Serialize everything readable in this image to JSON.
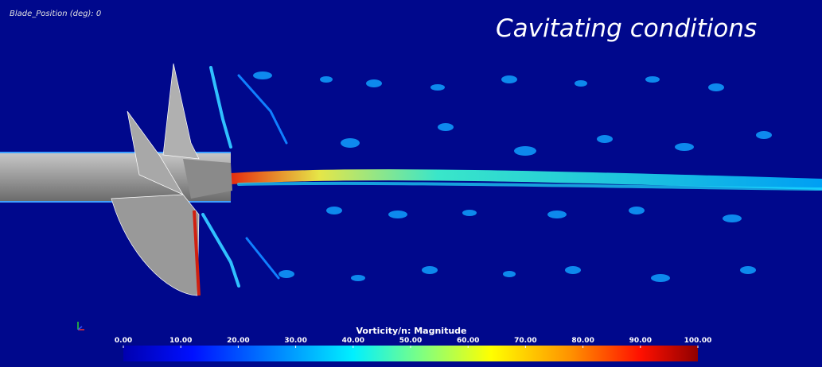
{
  "overlay": {
    "blade_position": "Blade_Position (deg): 0",
    "title": "Cavitating conditions"
  },
  "colorbar": {
    "title": "Vorticity/n: Magnitude",
    "lim": [
      0,
      100
    ],
    "ticks": [
      {
        "value": 0,
        "label": "0.00"
      },
      {
        "value": 10,
        "label": "10.00"
      },
      {
        "value": 20,
        "label": "20.00"
      },
      {
        "value": 30,
        "label": "30.00"
      },
      {
        "value": 40,
        "label": "40.00"
      },
      {
        "value": 50,
        "label": "50.00"
      },
      {
        "value": 60,
        "label": "60.00"
      },
      {
        "value": 70,
        "label": "70.00"
      },
      {
        "value": 80,
        "label": "80.00"
      },
      {
        "value": 90,
        "label": "90.00"
      },
      {
        "value": 100,
        "label": "100.00"
      }
    ]
  }
}
